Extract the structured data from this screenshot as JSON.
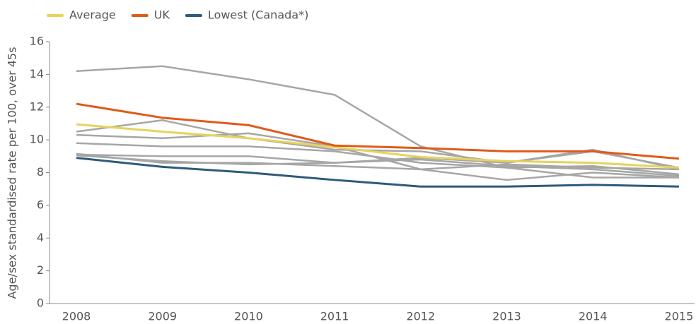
{
  "chart_data": {
    "type": "line",
    "y_label": "Age/sex standardised rate per 100, over 45s",
    "categories": [
      "2008",
      "2009",
      "2010",
      "2011",
      "2012",
      "2013",
      "2014",
      "2015"
    ],
    "ylim": [
      0,
      16
    ],
    "yticks": [
      0,
      2,
      4,
      6,
      8,
      10,
      12,
      14,
      16
    ],
    "legend": "top-left",
    "series": [
      {
        "color": "#a6a6a6",
        "values": [
          14.2,
          14.5,
          13.7,
          12.75,
          9.6,
          8.3,
          7.7,
          7.7
        ]
      },
      {
        "color": "#a6a6a6",
        "values": [
          10.5,
          11.2,
          10.1,
          9.4,
          9.3,
          8.6,
          9.3,
          8.3
        ]
      },
      {
        "color": "#a6a6a6",
        "values": [
          10.3,
          10.1,
          10.4,
          9.6,
          8.2,
          8.5,
          8.3,
          8.2
        ]
      },
      {
        "color": "#a6a6a6",
        "values": [
          9.8,
          9.6,
          9.6,
          9.3,
          8.6,
          8.3,
          8.4,
          7.9
        ]
      },
      {
        "color": "#a6a6a6",
        "values": [
          9.1,
          9.0,
          9.0,
          8.6,
          8.8,
          8.4,
          8.2,
          7.8
        ]
      },
      {
        "color": "#a6a6a6",
        "values": [
          9.05,
          8.7,
          8.5,
          8.6,
          8.9,
          8.6,
          9.4,
          8.2
        ]
      },
      {
        "color": "#a6a6a6",
        "values": [
          9.15,
          8.6,
          8.6,
          8.4,
          8.2,
          7.55,
          8.0,
          7.7
        ]
      },
      {
        "name": "Average",
        "color": "#e8d25a",
        "values": [
          10.95,
          10.5,
          10.1,
          9.55,
          8.95,
          8.7,
          8.6,
          8.3
        ]
      },
      {
        "name": "UK",
        "color": "#e05a1a",
        "values": [
          12.2,
          11.35,
          10.9,
          9.65,
          9.5,
          9.3,
          9.3,
          8.85
        ]
      },
      {
        "name": "Lowest (Canada*)",
        "color": "#2e5a7a",
        "values": [
          8.9,
          8.35,
          8.0,
          7.55,
          7.15,
          7.15,
          7.25,
          7.15
        ]
      }
    ]
  }
}
